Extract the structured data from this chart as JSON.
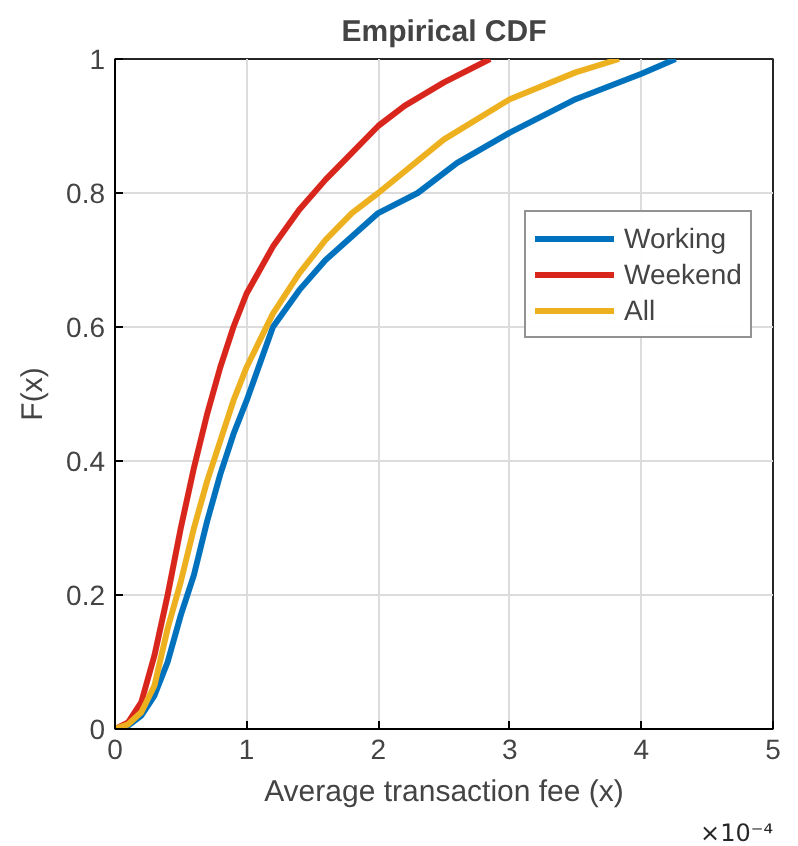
{
  "chart_data": {
    "type": "line",
    "title": "Empirical CDF",
    "xlabel": "Average transaction fee (x)",
    "ylabel": "F(x)",
    "annotations": [
      "×10⁻⁴"
    ],
    "xlim": [
      0,
      5
    ],
    "xticks": [
      0,
      1,
      2,
      3,
      4,
      5
    ],
    "ylim": [
      0,
      1
    ],
    "yticks": [
      0,
      0.2,
      0.4,
      0.6,
      0.8,
      1
    ],
    "grid": true,
    "legend": "top right",
    "line_style": "solid",
    "series": [
      {
        "name": "Working",
        "color": "#0072bd",
        "x": [
          0,
          0.1,
          0.2,
          0.3,
          0.4,
          0.5,
          0.55,
          0.6,
          0.7,
          0.8,
          0.9,
          1.0,
          1.2,
          1.4,
          1.6,
          1.8,
          2.0,
          2.3,
          2.6,
          3.0,
          3.5,
          4.0,
          4.26
        ],
        "values": [
          0,
          0.005,
          0.02,
          0.05,
          0.1,
          0.17,
          0.2,
          0.23,
          0.31,
          0.38,
          0.44,
          0.49,
          0.6,
          0.655,
          0.7,
          0.735,
          0.77,
          0.8,
          0.845,
          0.89,
          0.94,
          0.978,
          1.0
        ]
      },
      {
        "name": "Weekend",
        "color": "#d9261c",
        "x": [
          0,
          0.1,
          0.2,
          0.3,
          0.4,
          0.5,
          0.6,
          0.7,
          0.8,
          0.9,
          1.0,
          1.2,
          1.4,
          1.6,
          1.8,
          2.0,
          2.2,
          2.5,
          2.85
        ],
        "values": [
          0,
          0.01,
          0.04,
          0.11,
          0.2,
          0.3,
          0.39,
          0.47,
          0.54,
          0.6,
          0.65,
          0.72,
          0.775,
          0.82,
          0.86,
          0.9,
          0.93,
          0.965,
          1.0
        ]
      },
      {
        "name": "All",
        "color": "#edb120",
        "x": [
          0,
          0.1,
          0.2,
          0.3,
          0.4,
          0.5,
          0.6,
          0.7,
          0.8,
          0.9,
          1.0,
          1.2,
          1.4,
          1.6,
          1.8,
          2.0,
          2.5,
          3.0,
          3.5,
          3.83
        ],
        "values": [
          0,
          0.007,
          0.025,
          0.065,
          0.15,
          0.22,
          0.3,
          0.37,
          0.43,
          0.49,
          0.54,
          0.62,
          0.68,
          0.73,
          0.77,
          0.8,
          0.88,
          0.94,
          0.98,
          1.0
        ]
      }
    ]
  }
}
